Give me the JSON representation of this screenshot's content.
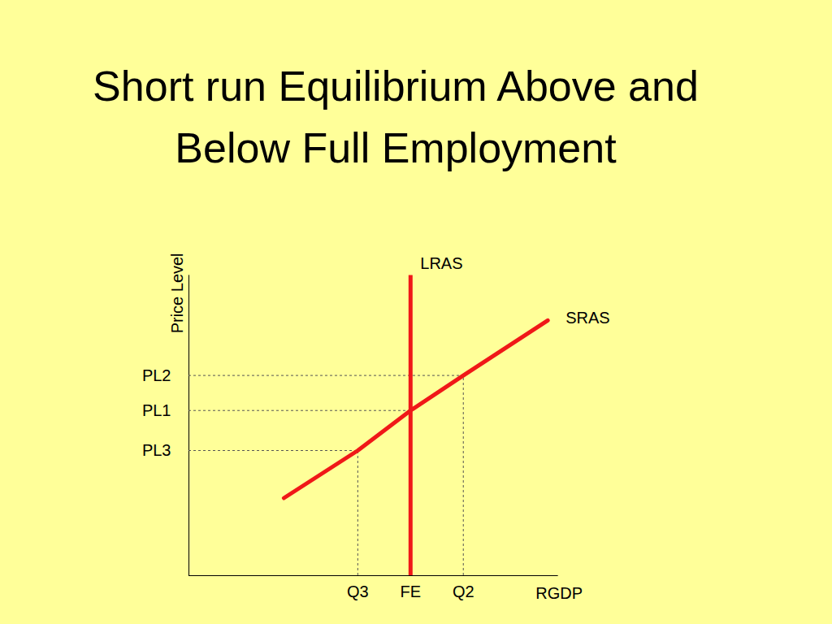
{
  "chart_data": {
    "type": "line",
    "title": "Short run Equilibrium Above and Below Full Employment",
    "x_label": "RGDP",
    "y_label": "Price Level",
    "xlim": [
      0,
      105
    ],
    "ylim": [
      0,
      120
    ],
    "xticks": [
      {
        "value": 48,
        "label": "Q3"
      },
      {
        "value": 63,
        "label": "FE"
      },
      {
        "value": 78,
        "label": "Q2"
      }
    ],
    "yticks": [
      {
        "value": 80,
        "label": "PL2"
      },
      {
        "value": 66,
        "label": "PL1"
      },
      {
        "value": 50,
        "label": "PL3"
      }
    ],
    "series": [
      {
        "name": "LRAS",
        "color": "#f01818",
        "x": [
          63,
          63
        ],
        "values": [
          0,
          120
        ]
      },
      {
        "name": "SRAS",
        "color": "#f01818",
        "x": [
          27,
          48,
          63,
          78,
          102
        ],
        "values": [
          31,
          50,
          66,
          80,
          102
        ]
      }
    ],
    "equilibria": [
      {
        "x": 48,
        "y": 50
      },
      {
        "x": 63,
        "y": 66
      },
      {
        "x": 78,
        "y": 80
      }
    ],
    "grid": false
  }
}
